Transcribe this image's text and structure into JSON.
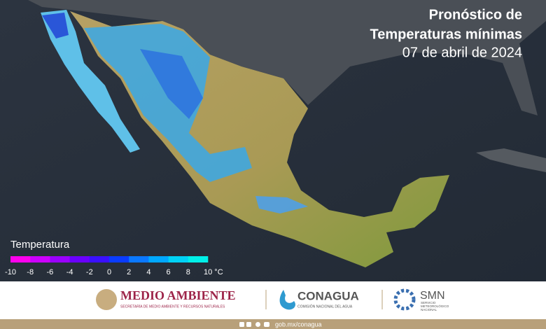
{
  "header": {
    "title_lines": [
      "Pronóstico de",
      "Temperaturas mínimas"
    ],
    "date": "07 de abril de 2024"
  },
  "legend": {
    "title": "Temperatura",
    "tick_labels": [
      "-10",
      "-8",
      "-6",
      "-4",
      "-2",
      "0",
      "2",
      "4",
      "6",
      "8",
      "10 °C"
    ],
    "colors": [
      "#ff00ee",
      "#cc00ff",
      "#9a00ff",
      "#6a00ff",
      "#3a10ff",
      "#0a3cff",
      "#0a78ff",
      "#00a8ff",
      "#00d2f5",
      "#00f0e8"
    ]
  },
  "footer": {
    "logos": [
      {
        "name": "MEDIO AMBIENTE",
        "subtitle_lines": [
          "SECRETARÍA DE MEDIO AMBIENTE Y RECURSOS NATURALES"
        ]
      },
      {
        "name": "CONAGUA",
        "subtitle_lines": [
          "COMISIÓN NACIONAL DEL AGUA"
        ]
      },
      {
        "name": "SMN",
        "subtitle_lines": [
          "SERVICIO",
          "METEOROLÓGICO",
          "NACIONAL"
        ]
      }
    ],
    "url": "gob.mx/conagua"
  }
}
